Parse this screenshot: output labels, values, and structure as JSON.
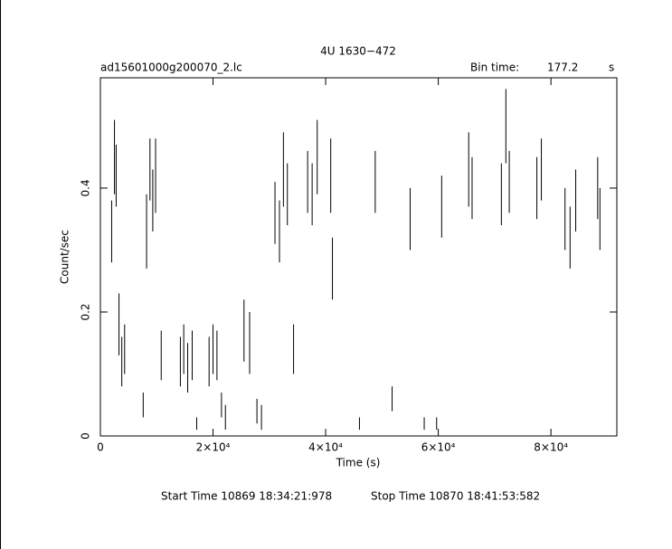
{
  "chart_data": {
    "type": "errorbar",
    "title": "4U 1630−472",
    "file_label": "ad15601000g200070_2.lc",
    "bin_time_label": "Bin time:",
    "bin_time": 177.2,
    "bin_time_unit": "s",
    "x_label": "Time (s)",
    "y_label": "Count/sec",
    "start_time": "Start Time 10869  18:34:21:978",
    "stop_time": "Stop Time 10870  18:41:53:582",
    "xlim": [
      0,
      91700
    ],
    "ylim": [
      0,
      0.578
    ],
    "xticks": [
      0,
      {
        "value": 20000,
        "label": "2×10⁴"
      },
      {
        "value": 40000,
        "label": "4×10⁴"
      },
      {
        "value": 60000,
        "label": "6×10⁴"
      },
      {
        "value": 80000,
        "label": "8×10⁴"
      }
    ],
    "yticks": [
      0,
      0.2,
      0.4
    ],
    "series": [
      {
        "color": "#000000",
        "x": [
          2000,
          2500,
          2800,
          3300,
          3800,
          4300,
          7600,
          8200,
          8800,
          9300,
          9800,
          10800,
          14200,
          14800,
          15500,
          16300,
          17100,
          19300,
          20000,
          20700,
          21500,
          22200,
          25500,
          26500,
          27800,
          28600,
          31000,
          31800,
          32500,
          33200,
          34300,
          36800,
          37600,
          38500,
          40900,
          41200,
          46000,
          48800,
          51800,
          55000,
          57500,
          59700,
          60600,
          65400,
          66000,
          71200,
          72000,
          72600,
          77500,
          78300,
          82500,
          83400,
          84400,
          88300,
          88700
        ],
        "values": [
          0.33,
          0.45,
          0.42,
          0.18,
          0.12,
          0.14,
          0.05,
          0.33,
          0.43,
          0.38,
          0.42,
          0.13,
          0.12,
          0.14,
          0.11,
          0.13,
          0.02,
          0.12,
          0.14,
          0.13,
          0.05,
          0.03,
          0.17,
          0.15,
          0.04,
          0.03,
          0.36,
          0.33,
          0.43,
          0.39,
          0.14,
          0.41,
          0.39,
          0.45,
          0.42,
          0.27,
          0.02,
          0.41,
          0.06,
          0.35,
          0.02,
          0.02,
          0.37,
          0.43,
          0.4,
          0.39,
          0.5,
          0.41,
          0.4,
          0.43,
          0.35,
          0.32,
          0.38,
          0.4,
          0.35
        ],
        "errors": [
          0.05,
          0.06,
          0.05,
          0.05,
          0.04,
          0.04,
          0.02,
          0.06,
          0.05,
          0.05,
          0.06,
          0.04,
          0.04,
          0.04,
          0.04,
          0.04,
          0.01,
          0.04,
          0.04,
          0.04,
          0.02,
          0.02,
          0.05,
          0.05,
          0.02,
          0.02,
          0.05,
          0.05,
          0.06,
          0.05,
          0.04,
          0.05,
          0.05,
          0.06,
          0.06,
          0.05,
          0.01,
          0.05,
          0.02,
          0.05,
          0.01,
          0.01,
          0.05,
          0.06,
          0.05,
          0.05,
          0.06,
          0.05,
          0.05,
          0.05,
          0.05,
          0.05,
          0.05,
          0.05,
          0.05
        ]
      }
    ]
  }
}
